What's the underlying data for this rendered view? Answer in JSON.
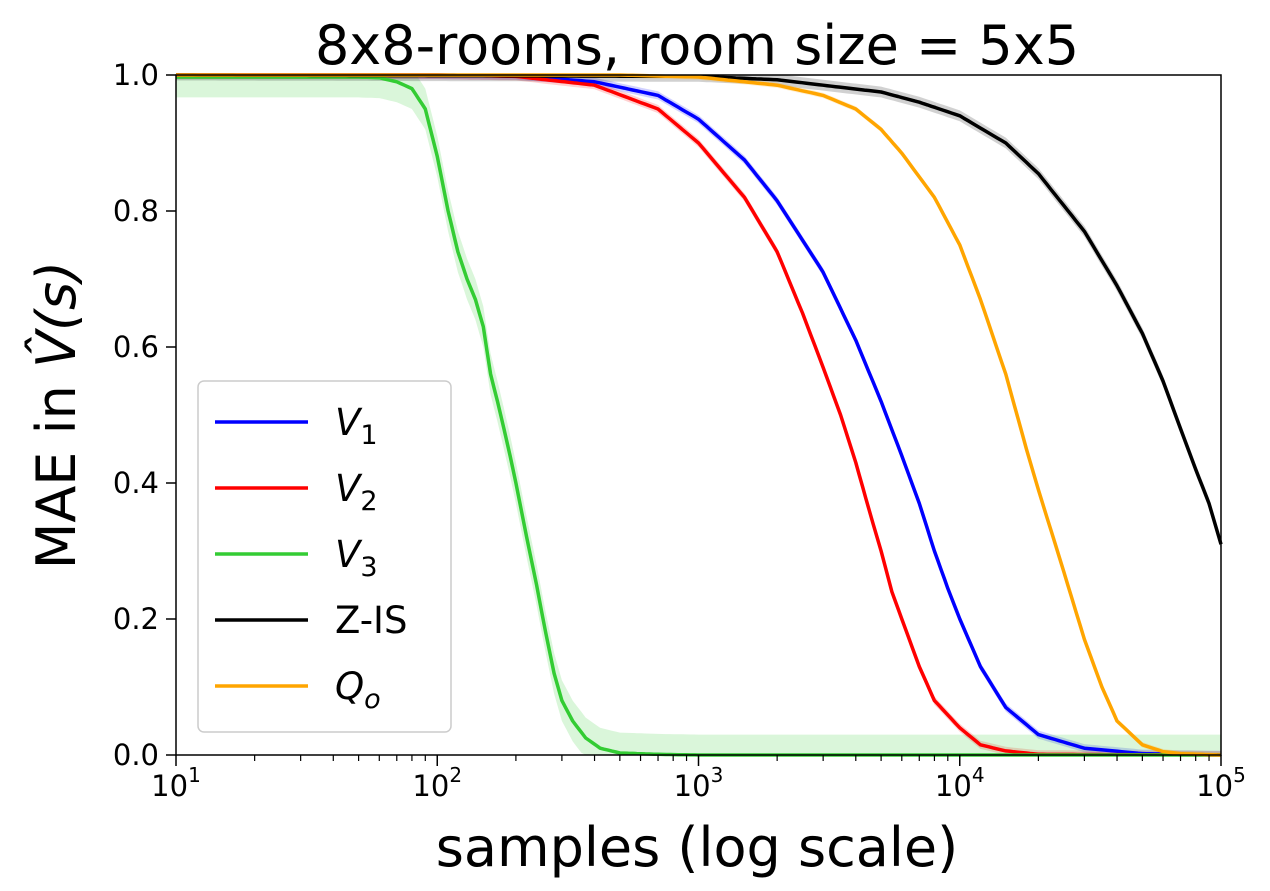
{
  "chart_data": {
    "type": "line",
    "title": "8x8-rooms, room size = 5x5",
    "xlabel": "samples (log scale)",
    "ylabel_text": "MAE in ",
    "ylabel_math": "V̂(s)",
    "xscale": "log",
    "xlim": [
      10,
      100000
    ],
    "ylim": [
      0.0,
      1.0
    ],
    "grid": false,
    "legend_position": "center-left",
    "x_ticks": [
      {
        "base": "10",
        "exp": "1",
        "value": 10
      },
      {
        "base": "10",
        "exp": "2",
        "value": 100
      },
      {
        "base": "10",
        "exp": "3",
        "value": 1000
      },
      {
        "base": "10",
        "exp": "4",
        "value": 10000
      },
      {
        "base": "10",
        "exp": "5",
        "value": 100000
      }
    ],
    "y_ticks": [
      "0.0",
      "0.2",
      "0.4",
      "0.6",
      "0.8",
      "1.0"
    ],
    "series": [
      {
        "name_base": "V",
        "name_sub": "1",
        "italic": true,
        "color": "#0000ff",
        "band_color": "#0000ff",
        "points": [
          [
            10,
            1.0
          ],
          [
            100,
            1.0
          ],
          [
            200,
            0.999
          ],
          [
            400,
            0.99
          ],
          [
            700,
            0.97
          ],
          [
            1000,
            0.935
          ],
          [
            1500,
            0.875
          ],
          [
            2000,
            0.815
          ],
          [
            3000,
            0.71
          ],
          [
            4000,
            0.61
          ],
          [
            5000,
            0.52
          ],
          [
            6000,
            0.44
          ],
          [
            7000,
            0.37
          ],
          [
            8000,
            0.3
          ],
          [
            9000,
            0.245
          ],
          [
            10000,
            0.2
          ],
          [
            12000,
            0.13
          ],
          [
            15000,
            0.07
          ],
          [
            20000,
            0.03
          ],
          [
            30000,
            0.01
          ],
          [
            50000,
            0.002
          ],
          [
            100000,
            0.0
          ]
        ],
        "band": 0.006
      },
      {
        "name_base": "V",
        "name_sub": "2",
        "italic": true,
        "color": "#ff0000",
        "band_color": "#ff0000",
        "points": [
          [
            10,
            1.0
          ],
          [
            100,
            1.0
          ],
          [
            200,
            0.998
          ],
          [
            400,
            0.985
          ],
          [
            700,
            0.95
          ],
          [
            1000,
            0.9
          ],
          [
            1500,
            0.82
          ],
          [
            2000,
            0.74
          ],
          [
            2500,
            0.65
          ],
          [
            3000,
            0.57
          ],
          [
            3500,
            0.5
          ],
          [
            4000,
            0.43
          ],
          [
            4500,
            0.36
          ],
          [
            5000,
            0.3
          ],
          [
            5500,
            0.24
          ],
          [
            6000,
            0.2
          ],
          [
            7000,
            0.13
          ],
          [
            8000,
            0.08
          ],
          [
            10000,
            0.04
          ],
          [
            12000,
            0.015
          ],
          [
            15000,
            0.006
          ],
          [
            20000,
            0.001
          ],
          [
            100000,
            0.0
          ]
        ],
        "band": 0.006
      },
      {
        "name_base": "V",
        "name_sub": "3",
        "italic": true,
        "color": "#33cc33",
        "band_color": "#33cc33",
        "points": [
          [
            10,
            0.997
          ],
          [
            30,
            0.997
          ],
          [
            50,
            0.997
          ],
          [
            60,
            0.996
          ],
          [
            70,
            0.99
          ],
          [
            80,
            0.98
          ],
          [
            90,
            0.95
          ],
          [
            100,
            0.88
          ],
          [
            110,
            0.8
          ],
          [
            120,
            0.74
          ],
          [
            130,
            0.7
          ],
          [
            140,
            0.67
          ],
          [
            150,
            0.63
          ],
          [
            160,
            0.56
          ],
          [
            170,
            0.52
          ],
          [
            180,
            0.48
          ],
          [
            190,
            0.44
          ],
          [
            200,
            0.4
          ],
          [
            220,
            0.32
          ],
          [
            240,
            0.25
          ],
          [
            260,
            0.18
          ],
          [
            280,
            0.12
          ],
          [
            300,
            0.08
          ],
          [
            330,
            0.05
          ],
          [
            370,
            0.025
          ],
          [
            420,
            0.01
          ],
          [
            500,
            0.003
          ],
          [
            700,
            0.001
          ],
          [
            1000,
            0.0
          ],
          [
            100000,
            0.0
          ]
        ],
        "band": 0.03
      },
      {
        "name_base": "Z-IS",
        "name_sub": "",
        "italic": false,
        "color": "#000000",
        "band_color": "#000000",
        "points": [
          [
            10,
            1.0
          ],
          [
            1000,
            0.998
          ],
          [
            2000,
            0.993
          ],
          [
            3000,
            0.985
          ],
          [
            5000,
            0.975
          ],
          [
            7000,
            0.96
          ],
          [
            10000,
            0.94
          ],
          [
            15000,
            0.9
          ],
          [
            20000,
            0.855
          ],
          [
            30000,
            0.77
          ],
          [
            40000,
            0.69
          ],
          [
            50000,
            0.62
          ],
          [
            60000,
            0.55
          ],
          [
            70000,
            0.48
          ],
          [
            80000,
            0.42
          ],
          [
            90000,
            0.37
          ],
          [
            100000,
            0.31
          ]
        ],
        "band": 0.008
      },
      {
        "name_base": "Q",
        "name_sub": "o",
        "italic": true,
        "color": "#ffa500",
        "band_color": "#ffa500",
        "points": [
          [
            10,
            1.0
          ],
          [
            500,
            1.0
          ],
          [
            1000,
            0.997
          ],
          [
            1500,
            0.99
          ],
          [
            2000,
            0.985
          ],
          [
            3000,
            0.97
          ],
          [
            4000,
            0.95
          ],
          [
            5000,
            0.92
          ],
          [
            6000,
            0.885
          ],
          [
            8000,
            0.82
          ],
          [
            10000,
            0.75
          ],
          [
            12000,
            0.67
          ],
          [
            15000,
            0.56
          ],
          [
            18000,
            0.45
          ],
          [
            20000,
            0.39
          ],
          [
            25000,
            0.27
          ],
          [
            30000,
            0.17
          ],
          [
            35000,
            0.1
          ],
          [
            40000,
            0.05
          ],
          [
            50000,
            0.015
          ],
          [
            60000,
            0.005
          ],
          [
            70000,
            0.002
          ],
          [
            100000,
            0.0
          ]
        ],
        "band": 0.004
      }
    ]
  }
}
